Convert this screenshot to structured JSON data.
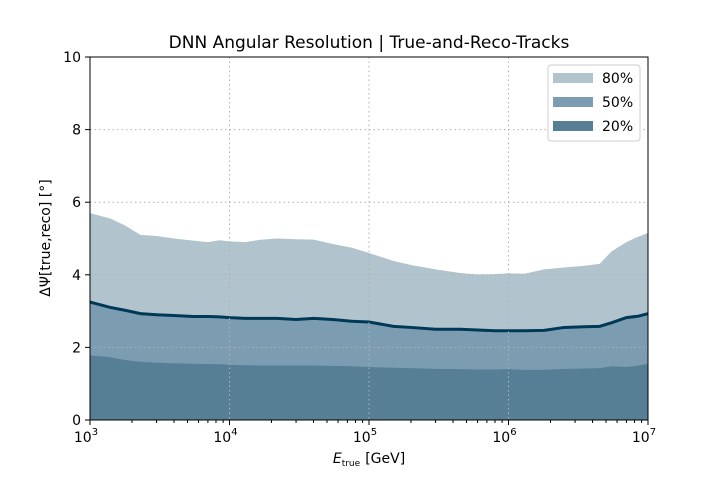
{
  "chart_data": {
    "type": "area",
    "title": "DNN Angular Resolution | True-and-Reco-Tracks",
    "xlabel": "E",
    "xlabel_sub": "true",
    "xlabel_unit": "[GeV]",
    "ylabel": "ΔΨ[true,reco] [°]",
    "xscale": "log",
    "xlim": [
      1000,
      10000000
    ],
    "ylim": [
      0,
      10
    ],
    "grid": true,
    "legend_position": "top-right",
    "x_ticks": [
      {
        "base": "10",
        "exp": "3"
      },
      {
        "base": "10",
        "exp": "4"
      },
      {
        "base": "10",
        "exp": "5"
      },
      {
        "base": "10",
        "exp": "6"
      },
      {
        "base": "10",
        "exp": "7"
      }
    ],
    "y_ticks": [
      "0",
      "2",
      "4",
      "6",
      "8",
      "10"
    ],
    "x": [
      1000,
      1400,
      1800,
      2300,
      3000,
      4000,
      5500,
      7000,
      8500,
      10000,
      13000,
      17000,
      22000,
      30000,
      40000,
      55000,
      75000,
      100000,
      150000,
      200000,
      300000,
      450000,
      600000,
      800000,
      1000000,
      1300000,
      1800000,
      2500000,
      3500000,
      4500000,
      5500000,
      7000000,
      8500000,
      10000000
    ],
    "series": [
      {
        "name": "80%",
        "color": "#b1c4cd",
        "values": [
          5.7,
          5.55,
          5.35,
          5.1,
          5.07,
          5.0,
          4.94,
          4.9,
          4.95,
          4.92,
          4.9,
          4.97,
          5.0,
          4.98,
          4.97,
          4.85,
          4.75,
          4.6,
          4.38,
          4.27,
          4.15,
          4.05,
          4.01,
          4.02,
          4.04,
          4.03,
          4.15,
          4.2,
          4.25,
          4.3,
          4.65,
          4.9,
          5.05,
          5.15
        ]
      },
      {
        "name": "50%",
        "color": "#7c9db1",
        "values": [
          3.25,
          3.1,
          3.02,
          2.93,
          2.9,
          2.88,
          2.85,
          2.85,
          2.84,
          2.82,
          2.8,
          2.8,
          2.8,
          2.77,
          2.8,
          2.77,
          2.72,
          2.7,
          2.58,
          2.55,
          2.5,
          2.5,
          2.48,
          2.46,
          2.46,
          2.46,
          2.47,
          2.55,
          2.57,
          2.58,
          2.68,
          2.82,
          2.86,
          2.93
        ]
      },
      {
        "name": "20%",
        "color": "#567f95",
        "values": [
          1.78,
          1.73,
          1.65,
          1.6,
          1.58,
          1.56,
          1.55,
          1.54,
          1.54,
          1.52,
          1.51,
          1.5,
          1.5,
          1.5,
          1.5,
          1.49,
          1.48,
          1.46,
          1.44,
          1.43,
          1.41,
          1.4,
          1.39,
          1.39,
          1.4,
          1.38,
          1.38,
          1.41,
          1.42,
          1.43,
          1.48,
          1.46,
          1.5,
          1.55
        ]
      }
    ],
    "median_line_color": "#003957"
  }
}
